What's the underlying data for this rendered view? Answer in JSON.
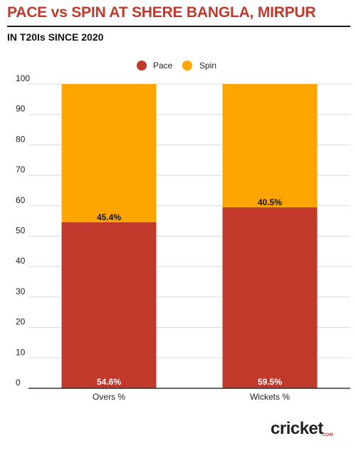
{
  "header": {
    "title": "PACE vs SPIN AT SHERE BANGLA, MIRPUR",
    "subtitle": "IN T20Is SINCE 2020"
  },
  "chart_data": {
    "type": "bar",
    "stacked": true,
    "categories": [
      "Overs %",
      "Wickets %"
    ],
    "series": [
      {
        "name": "Pace",
        "color": "#c0392b",
        "values": [
          54.6,
          59.5
        ],
        "labels": [
          "54.6%",
          "59.5%"
        ]
      },
      {
        "name": "Spin",
        "color": "#ffa500",
        "values": [
          45.4,
          40.5
        ],
        "labels": [
          "45.4%",
          "40.5%"
        ]
      }
    ],
    "ylim": [
      0,
      100
    ],
    "yticks": [
      0,
      10,
      20,
      30,
      40,
      50,
      60,
      70,
      80,
      90,
      100
    ],
    "grid": true,
    "legend": "top-center"
  },
  "branding": {
    "logo": "cricket",
    "logo_sub": ".COM"
  }
}
